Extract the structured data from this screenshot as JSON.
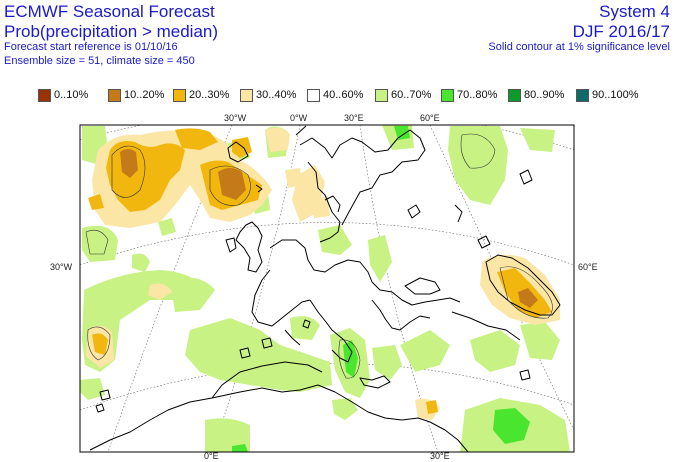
{
  "header": {
    "title": "ECMWF Seasonal Forecast",
    "subtitle": "Prob(precipitation > median)",
    "start_ref": "Forecast start reference is 01/10/16",
    "ensemble": "Ensemble size = 51, climate size = 450",
    "system": "System 4",
    "season": "DJF 2016/17",
    "note": "Solid contour at 1% significance level"
  },
  "legend": [
    {
      "label": "0..10%",
      "color": "#9a3208"
    },
    {
      "label": "10..20%",
      "color": "#c47a18"
    },
    {
      "label": "20..30%",
      "color": "#f2b70e"
    },
    {
      "label": "30..40%",
      "color": "#fbe6a6"
    },
    {
      "label": "40..60%",
      "color": "#ffffff"
    },
    {
      "label": "60..70%",
      "color": "#c8f283"
    },
    {
      "label": "70..80%",
      "color": "#4ae52e"
    },
    {
      "label": "80..90%",
      "color": "#0d9a2c"
    },
    {
      "label": "90..100%",
      "color": "#0f6a6a"
    }
  ],
  "map": {
    "tick_labels": {
      "top": [
        "30°W",
        "0°W",
        "30°E",
        "60°E"
      ],
      "left": "30°W",
      "right": "60°E",
      "bottom": [
        "0°E",
        "30°E"
      ]
    }
  }
}
